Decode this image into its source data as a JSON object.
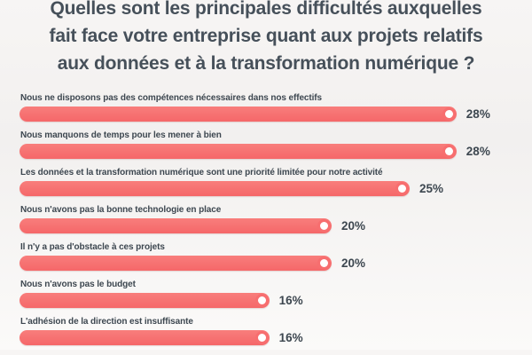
{
  "page": {
    "background": "#f4f2f1",
    "accent_color": "#f76e6f",
    "title_color": "#46505a",
    "text_color": "#3d4750"
  },
  "title": {
    "full_text": "Quelles sont les principales difficultés auxquelles fait face votre entreprise quant aux projets relatifs aux données et à la transformation numérique ?",
    "lines": [
      "Quelles sont les principales difficultés auxquelles",
      "fait face votre entreprise quant aux projets relatifs",
      "aux données et à la transformation numérique ?"
    ]
  },
  "chart_data": {
    "type": "bar",
    "orientation": "horizontal",
    "title": "Quelles sont les principales difficultés auxquelles fait face votre entreprise quant aux projets relatifs aux données et à la transformation numérique ?",
    "xlabel": "",
    "ylabel": "",
    "unit": "%",
    "xlim": [
      0,
      30
    ],
    "grid": false,
    "legend": false,
    "bar_color": "#f76e6f",
    "categories": [
      "Nous ne disposons pas des compétences nécessaires dans nos effectifs",
      "Nous manquons de temps pour les mener à bien",
      "Les données et la transformation numérique sont une priorité limitée pour notre activité",
      "Nous n'avons pas la bonne technologie en place",
      "Il n'y a pas d'obstacle à ces projets",
      "Nous n'avons pas le budget",
      "L'adhésion de la direction est insuffisante"
    ],
    "values": [
      28,
      28,
      25,
      20,
      20,
      16,
      16
    ],
    "value_labels": [
      "28%",
      "28%",
      "25%",
      "20%",
      "20%",
      "16%",
      "16%"
    ]
  }
}
